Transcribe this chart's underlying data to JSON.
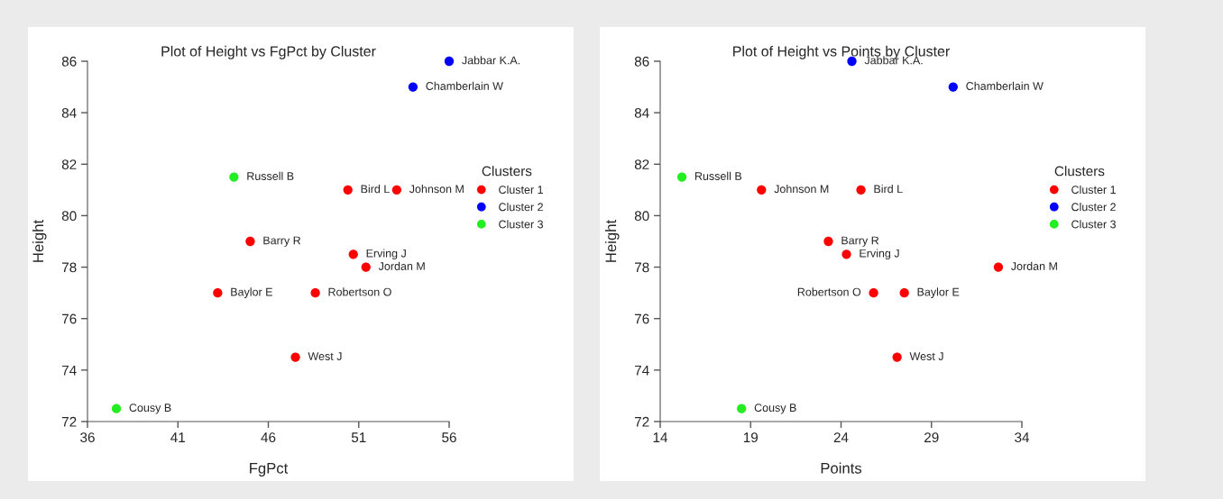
{
  "chart_data": [
    {
      "type": "scatter",
      "title": "Plot of Height vs FgPct by Cluster",
      "xlabel": "FgPct",
      "ylabel": "Height",
      "legend_title": "Clusters",
      "legend": "right",
      "marker": "circle",
      "grid": false,
      "xlim": [
        36,
        56
      ],
      "xticks": [
        36,
        41,
        46,
        51,
        56
      ],
      "ylim": [
        72,
        86
      ],
      "yticks": [
        72,
        74,
        76,
        78,
        80,
        82,
        84,
        86
      ],
      "series": [
        {
          "name": "Cluster 1",
          "color": "#ff0000",
          "x": [
            50.4,
            53.1,
            45.0,
            50.7,
            51.4,
            43.2,
            48.6,
            47.5
          ],
          "values": [
            81,
            81,
            79,
            78.5,
            78,
            77,
            77,
            74.5
          ]
        },
        {
          "name": "Cluster 2",
          "color": "#0000ff",
          "x": [
            56.0,
            54.0
          ],
          "values": [
            86,
            85
          ]
        },
        {
          "name": "Cluster 3",
          "color": "#22ee22",
          "x": [
            44.1,
            37.6
          ],
          "values": [
            81.5,
            72.5
          ]
        }
      ],
      "annotations": [
        {
          "text": "Bird L",
          "x": 50.4,
          "y": 81
        },
        {
          "text": "Johnson M",
          "x": 53.1,
          "y": 81
        },
        {
          "text": "Barry R",
          "x": 45.0,
          "y": 79
        },
        {
          "text": "Erving J",
          "x": 50.7,
          "y": 78.5
        },
        {
          "text": "Jordan M",
          "x": 51.4,
          "y": 78
        },
        {
          "text": "Baylor E",
          "x": 43.2,
          "y": 77
        },
        {
          "text": "Robertson O",
          "x": 48.6,
          "y": 77
        },
        {
          "text": "West J",
          "x": 47.5,
          "y": 74.5
        },
        {
          "text": "Jabbar K.A.",
          "x": 56.0,
          "y": 86
        },
        {
          "text": "Chamberlain W",
          "x": 54.0,
          "y": 85
        },
        {
          "text": "Russell B",
          "x": 44.1,
          "y": 81.5
        },
        {
          "text": "Cousy B",
          "x": 37.6,
          "y": 72.5
        }
      ]
    },
    {
      "type": "scatter",
      "title": "Plot of Height vs Points by Cluster",
      "xlabel": "Points",
      "ylabel": "Height",
      "legend_title": "Clusters",
      "legend": "right",
      "marker": "circle",
      "grid": false,
      "xlim": [
        14,
        34
      ],
      "xticks": [
        14,
        19,
        24,
        29,
        34
      ],
      "ylim": [
        72,
        86
      ],
      "yticks": [
        72,
        74,
        76,
        78,
        80,
        82,
        84,
        86
      ],
      "series": [
        {
          "name": "Cluster 1",
          "color": "#ff0000",
          "x": [
            25.1,
            19.6,
            23.3,
            24.3,
            32.7,
            27.5,
            25.8,
            27.1
          ],
          "values": [
            81,
            81,
            79,
            78.5,
            78,
            77,
            77,
            74.5
          ]
        },
        {
          "name": "Cluster 2",
          "color": "#0000ff",
          "x": [
            24.6,
            30.2
          ],
          "values": [
            86,
            85
          ]
        },
        {
          "name": "Cluster 3",
          "color": "#22ee22",
          "x": [
            15.2,
            18.5
          ],
          "values": [
            81.5,
            72.5
          ]
        }
      ],
      "annotations": [
        {
          "text": "Bird L",
          "x": 25.1,
          "y": 81
        },
        {
          "text": "Johnson M",
          "x": 19.6,
          "y": 81
        },
        {
          "text": "Barry R",
          "x": 23.3,
          "y": 79
        },
        {
          "text": "Erving J",
          "x": 24.3,
          "y": 78.5
        },
        {
          "text": "Jordan M",
          "x": 32.7,
          "y": 78
        },
        {
          "text": "Baylor E",
          "x": 27.5,
          "y": 77
        },
        {
          "text": "Robertson O",
          "x": 25.8,
          "y": 77
        },
        {
          "text": "West J",
          "x": 27.1,
          "y": 74.5
        },
        {
          "text": "Jabbar K.A.",
          "x": 24.6,
          "y": 86
        },
        {
          "text": "Chamberlain W",
          "x": 30.2,
          "y": 85
        },
        {
          "text": "Russell B",
          "x": 15.2,
          "y": 81.5
        },
        {
          "text": "Cousy B",
          "x": 18.5,
          "y": 72.5
        }
      ]
    }
  ]
}
